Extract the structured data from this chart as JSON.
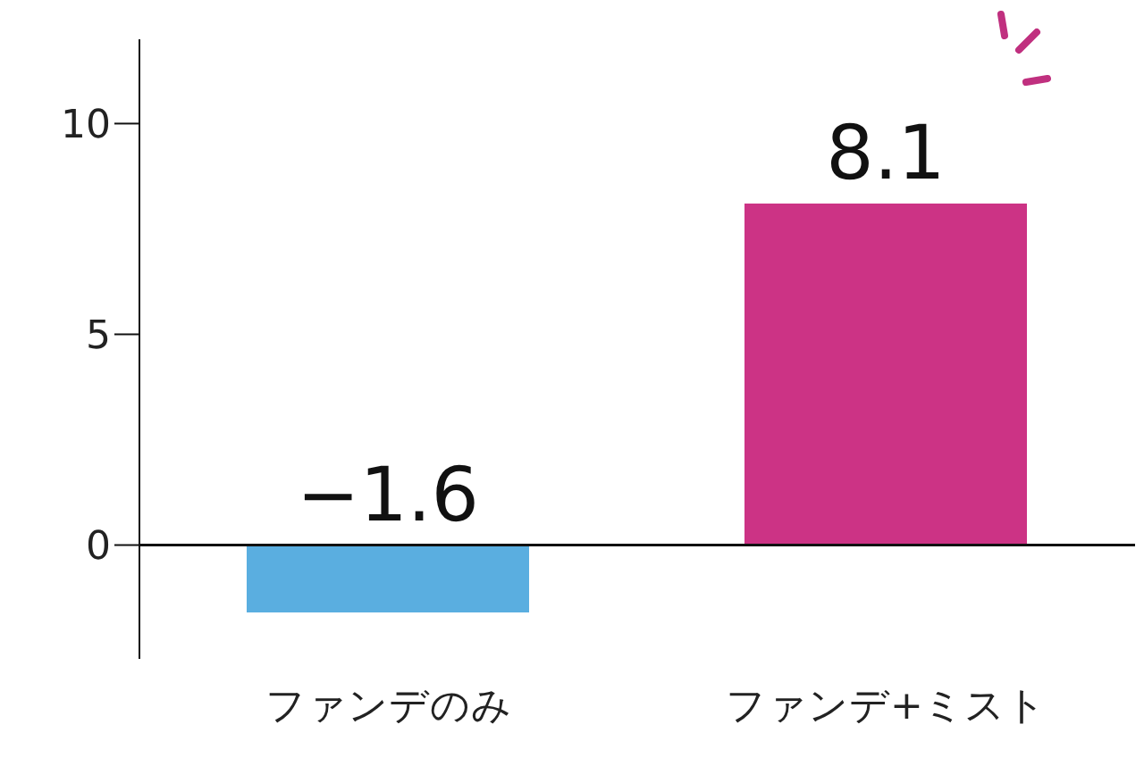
{
  "chart_data": {
    "type": "bar",
    "categories": [
      "ファンデのみ",
      "ファンデ+ミスト"
    ],
    "values": [
      -1.6,
      8.1
    ],
    "colors": [
      "#5aaee0",
      "#cc3385"
    ],
    "value_labels": [
      "−1.6",
      "8.1"
    ],
    "ylim": [
      -2.7,
      12
    ],
    "yticks": [
      0,
      5,
      10
    ]
  }
}
